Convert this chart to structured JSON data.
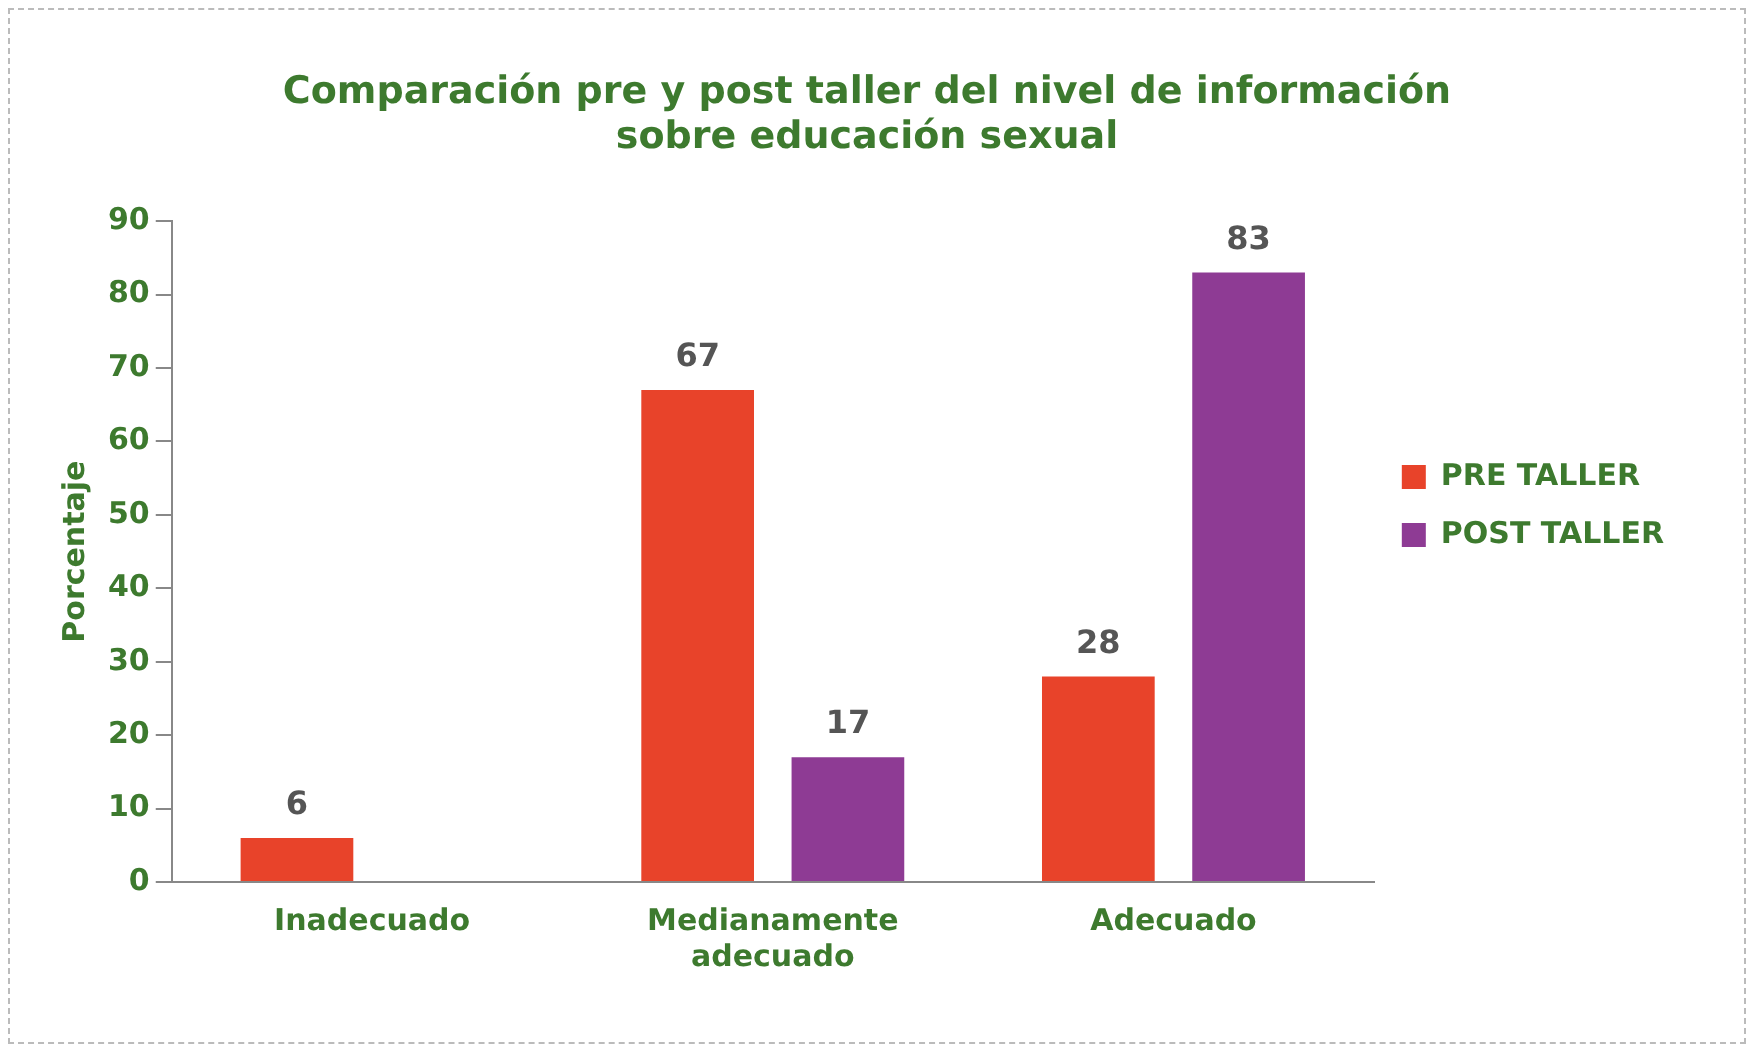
{
  "chart_data": {
    "type": "bar",
    "title": [
      "Comparación pre y post taller del nivel de información",
      "sobre educación sexual"
    ],
    "ylabel": "Porcentaje",
    "categories": [
      [
        "Inadecuado"
      ],
      [
        "Medianamente",
        "adecuado"
      ],
      [
        "Adecuado"
      ]
    ],
    "series": [
      {
        "name": "PRE TALLER",
        "color": "#e8432a",
        "values": [
          6,
          67,
          28
        ]
      },
      {
        "name": "POST TALLER",
        "color": "#8e3b94",
        "values": [
          null,
          17,
          83
        ]
      }
    ],
    "ylim": [
      0,
      90
    ],
    "yticks": [
      0,
      10,
      20,
      30,
      40,
      50,
      60,
      70,
      80,
      90
    ],
    "grid": false,
    "legend": "right",
    "data_labels": true
  }
}
